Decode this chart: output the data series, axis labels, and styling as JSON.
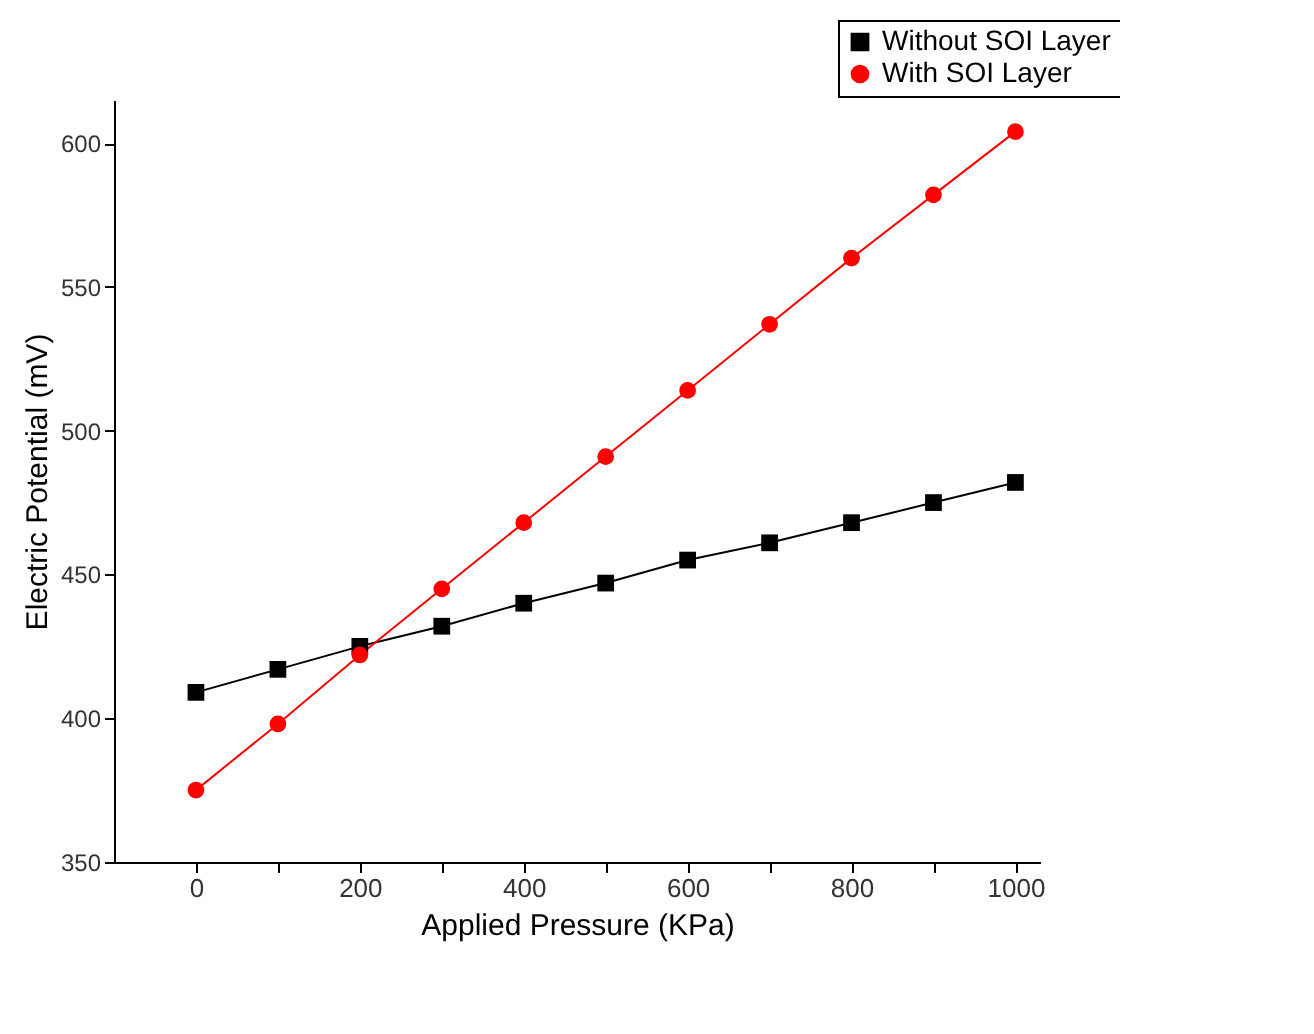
{
  "chart_data": {
    "type": "line",
    "xlabel": "Applied Pressure (KPa)",
    "ylabel": "Electric Potential (mV)",
    "x": [
      0,
      100,
      200,
      300,
      400,
      500,
      600,
      700,
      800,
      900,
      1000
    ],
    "series": [
      {
        "name": "Without SOI Layer",
        "color": "#000000",
        "marker": "square",
        "values": [
          409,
          417,
          425,
          432,
          440,
          447,
          455,
          461,
          468,
          475,
          482
        ]
      },
      {
        "name": "With SOI Layer",
        "color": "#ff0000",
        "marker": "circle",
        "values": [
          375,
          398,
          422,
          445,
          468,
          491,
          514,
          537,
          560,
          582,
          604
        ]
      }
    ],
    "xlim": [
      -100,
      1030
    ],
    "ylim": [
      350,
      615
    ],
    "xticks": [
      0,
      {
        "value": 100,
        "label": null
      },
      200,
      {
        "value": 300,
        "label": null
      },
      400,
      {
        "value": 500,
        "label": null
      },
      600,
      {
        "value": 700,
        "label": null
      },
      800,
      {
        "value": 900,
        "label": null
      },
      1000
    ],
    "yticks": [
      350,
      400,
      450,
      500,
      550,
      600
    ],
    "grid": false,
    "legend": "top right",
    "line_style": "solid"
  }
}
